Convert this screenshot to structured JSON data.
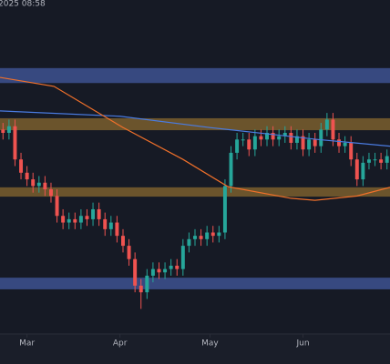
{
  "chart_data": {
    "type": "candlestick",
    "timestamp": "2025 08:58",
    "xlim": [
      0,
      130
    ],
    "xticks": [
      {
        "value": 9,
        "label": "Mar"
      },
      {
        "value": 40,
        "label": "Apr"
      },
      {
        "value": 70,
        "label": "May"
      },
      {
        "value": 101,
        "label": "Jun"
      }
    ],
    "ylim": [
      0,
      100
    ],
    "up_color": "#26a69a",
    "down_color": "#ef5350",
    "x": [
      1,
      3,
      5,
      7,
      9,
      11,
      13,
      15,
      17,
      19,
      21,
      23,
      25,
      27,
      29,
      31,
      33,
      35,
      37,
      39,
      41,
      43,
      45,
      47,
      49,
      51,
      53,
      55,
      57,
      59,
      61,
      63,
      65,
      67,
      69,
      71,
      73,
      75,
      77,
      79,
      81,
      83,
      85,
      87,
      89,
      91,
      93,
      95,
      97,
      99,
      101,
      103,
      105,
      107,
      109,
      111,
      113,
      115,
      117,
      119,
      121,
      123,
      125,
      127,
      129
    ],
    "open": [
      61,
      60,
      62,
      52,
      48,
      46,
      44,
      45,
      43,
      41,
      35,
      33,
      34,
      33,
      35,
      34,
      37,
      34,
      31,
      33,
      29,
      26,
      22,
      14,
      12,
      17,
      19,
      18,
      19,
      20,
      19,
      26,
      28,
      29,
      28,
      30,
      29,
      30,
      44,
      54,
      58,
      58,
      55,
      59,
      58,
      60,
      58,
      59,
      60,
      57,
      59,
      55,
      58,
      56,
      61,
      64,
      58,
      56,
      57,
      52,
      46,
      51,
      52,
      52,
      51
    ],
    "high": [
      63,
      64,
      64,
      54,
      50,
      48,
      47,
      47,
      45,
      43,
      37,
      36,
      36,
      37,
      37,
      39,
      39,
      36,
      35,
      35,
      31,
      28,
      24,
      16,
      19,
      21,
      21,
      21,
      22,
      22,
      28,
      30,
      31,
      31,
      32,
      32,
      32,
      46,
      56,
      60,
      60,
      60,
      61,
      61,
      62,
      62,
      61,
      62,
      62,
      61,
      61,
      60,
      60,
      63,
      66,
      66,
      60,
      59,
      59,
      54,
      53,
      54,
      54,
      54,
      55
    ],
    "low": [
      58,
      58,
      50,
      46,
      44,
      42,
      42,
      41,
      39,
      33,
      31,
      31,
      31,
      31,
      32,
      32,
      32,
      29,
      29,
      27,
      24,
      20,
      12,
      7,
      10,
      15,
      16,
      16,
      17,
      17,
      17,
      24,
      26,
      26,
      26,
      27,
      27,
      28,
      42,
      52,
      56,
      53,
      53,
      56,
      56,
      56,
      56,
      57,
      55,
      55,
      53,
      53,
      54,
      54,
      59,
      56,
      54,
      54,
      50,
      44,
      44,
      49,
      50,
      49,
      49
    ],
    "close": [
      60,
      62,
      52,
      48,
      46,
      44,
      45,
      43,
      41,
      35,
      33,
      34,
      33,
      35,
      34,
      37,
      34,
      31,
      33,
      29,
      26,
      22,
      14,
      12,
      17,
      19,
      18,
      19,
      20,
      19,
      26,
      28,
      29,
      28,
      30,
      29,
      30,
      44,
      54,
      58,
      58,
      55,
      59,
      58,
      60,
      58,
      59,
      60,
      57,
      59,
      55,
      58,
      56,
      61,
      64,
      58,
      56,
      57,
      52,
      46,
      51,
      52,
      52,
      51,
      53
    ],
    "zones": [
      {
        "range": [
          75,
          79.5
        ],
        "color": "#3d5290"
      },
      {
        "range": [
          60.8,
          64.4
        ],
        "color": "#7a5f2e"
      },
      {
        "range": [
          40.8,
          43.6
        ],
        "color": "#7a5f2e"
      },
      {
        "range": [
          12.9,
          16.4
        ],
        "color": "#3d5290"
      }
    ],
    "lines": [
      {
        "color": "#4a7be0",
        "x": [
          0,
          40,
          70,
          91,
          106,
          130
        ],
        "values": [
          66.6,
          65,
          61.6,
          59.5,
          58,
          56
        ]
      },
      {
        "color": "#f0702a",
        "x": [
          0,
          18,
          41,
          61,
          76,
          97,
          105,
          119,
          130
        ],
        "values": [
          76.7,
          74,
          61.6,
          52,
          43.8,
          40.3,
          39.7,
          41,
          43.6
        ]
      }
    ]
  }
}
